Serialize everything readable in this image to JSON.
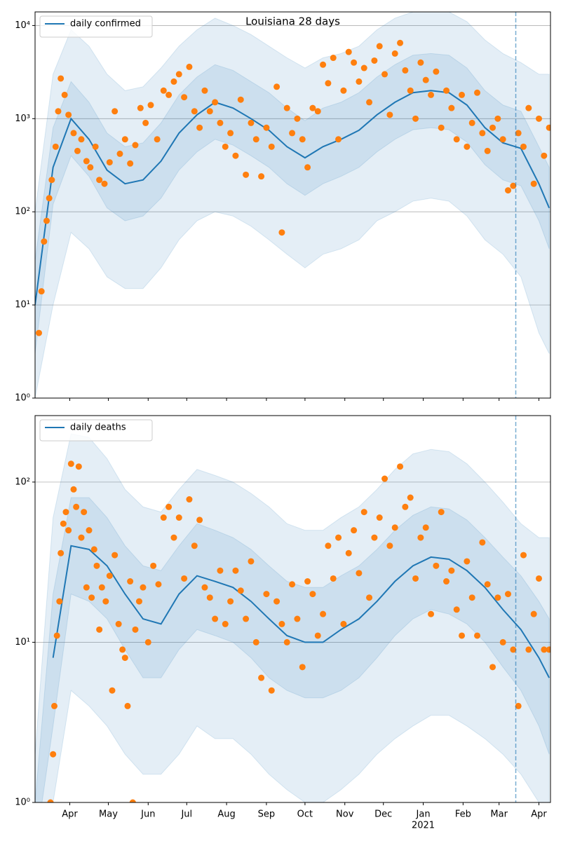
{
  "chart_data": [
    {
      "type": "line",
      "title": "Louisiana 28 days",
      "legend_loc": "upper left",
      "log_y": true,
      "grid": true,
      "show_xtick_labels": false,
      "xlim": [
        0,
        401
      ],
      "ylim": [
        1,
        14000
      ],
      "yticks": [
        {
          "value": 1,
          "label": "10⁰"
        },
        {
          "value": 10,
          "label": "10¹"
        },
        {
          "value": 100,
          "label": "10²"
        },
        {
          "value": 1000,
          "label": "10³"
        },
        {
          "value": 10000,
          "label": "10⁴"
        }
      ],
      "xticks": [
        {
          "value": 27,
          "label": "Apr"
        },
        {
          "value": 57,
          "label": "May"
        },
        {
          "value": 88,
          "label": "Jun"
        },
        {
          "value": 118,
          "label": "Jul"
        },
        {
          "value": 149,
          "label": "Aug"
        },
        {
          "value": 180,
          "label": "Sep"
        },
        {
          "value": 210,
          "label": "Oct"
        },
        {
          "value": 241,
          "label": "Nov"
        },
        {
          "value": 271,
          "label": "Dec"
        },
        {
          "value": 302,
          "label": "Jan"
        },
        {
          "value": 333,
          "label": "Feb"
        },
        {
          "value": 361,
          "label": "Mar"
        },
        {
          "value": 392,
          "label": "Apr"
        }
      ],
      "vline": 374,
      "vline_color": "#1f77b4",
      "series": [
        {
          "name": "daily confirmed",
          "kind": "line",
          "color": "#1f77b4",
          "x": [
            0,
            14,
            28,
            42,
            56,
            70,
            84,
            98,
            112,
            126,
            140,
            154,
            168,
            182,
            196,
            210,
            224,
            238,
            252,
            266,
            280,
            294,
            308,
            322,
            336,
            350,
            364,
            378,
            392,
            400
          ],
          "values": [
            10,
            300,
            1000,
            600,
            280,
            200,
            220,
            350,
            700,
            1100,
            1500,
            1300,
            1000,
            750,
            500,
            380,
            500,
            600,
            750,
            1100,
            1500,
            1900,
            2000,
            1900,
            1400,
            800,
            550,
            480,
            200,
            110
          ],
          "bands": [
            {
              "lower": [
                1,
                10,
                60,
                40,
                20,
                15,
                15,
                25,
                50,
                80,
                100,
                90,
                70,
                50,
                35,
                25,
                35,
                40,
                50,
                80,
                100,
                130,
                140,
                130,
                90,
                50,
                35,
                20,
                5,
                3
              ],
              "upper": [
                100,
                3000,
                9000,
                6000,
                3000,
                2000,
                2200,
                3500,
                6000,
                9000,
                12000,
                10000,
                8000,
                6000,
                4500,
                3500,
                4500,
                5000,
                6000,
                9000,
                12000,
                14000,
                14000,
                14000,
                11000,
                7000,
                5000,
                4000,
                3000,
                3000
              ]
            },
            {
              "lower": [
                3,
                120,
                400,
                240,
                110,
                80,
                90,
                140,
                280,
                440,
                600,
                520,
                400,
                300,
                200,
                150,
                200,
                240,
                300,
                440,
                600,
                760,
                800,
                760,
                560,
                320,
                220,
                190,
                80,
                40
              ],
              "upper": [
                30,
                800,
                2500,
                1500,
                700,
                500,
                550,
                900,
                1800,
                2800,
                3800,
                3300,
                2500,
                1900,
                1300,
                950,
                1300,
                1500,
                1900,
                2800,
                3800,
                4800,
                5000,
                4800,
                3500,
                2000,
                1400,
                1200,
                500,
                300
              ]
            }
          ]
        },
        {
          "kind": "scatter",
          "color": "#ff7f0e",
          "x": [
            3,
            5,
            7,
            9,
            11,
            13,
            16,
            18,
            20,
            23,
            26,
            30,
            33,
            36,
            40,
            43,
            47,
            50,
            54,
            58,
            62,
            66,
            70,
            74,
            78,
            82,
            86,
            90,
            95,
            100,
            104,
            108,
            112,
            116,
            120,
            124,
            128,
            132,
            136,
            140,
            144,
            148,
            152,
            156,
            160,
            164,
            168,
            172,
            176,
            180,
            184,
            188,
            192,
            196,
            200,
            204,
            208,
            212,
            216,
            220,
            224,
            228,
            232,
            236,
            240,
            244,
            248,
            252,
            256,
            260,
            264,
            268,
            272,
            276,
            280,
            284,
            288,
            292,
            296,
            300,
            304,
            308,
            312,
            316,
            320,
            324,
            328,
            332,
            336,
            340,
            344,
            348,
            352,
            356,
            360,
            364,
            368,
            372,
            376,
            380,
            384,
            388,
            392,
            396,
            400
          ],
          "values": [
            5,
            14,
            48,
            80,
            140,
            220,
            500,
            1200,
            2700,
            1800,
            1100,
            700,
            450,
            600,
            350,
            300,
            500,
            220,
            200,
            340,
            1200,
            420,
            600,
            330,
            520,
            1300,
            900,
            1400,
            600,
            2000,
            1800,
            2500,
            3000,
            1700,
            3600,
            1200,
            800,
            2000,
            1200,
            1500,
            900,
            500,
            700,
            400,
            1600,
            250,
            900,
            600,
            240,
            800,
            500,
            2200,
            60,
            1300,
            700,
            1000,
            600,
            300,
            1300,
            1200,
            3800,
            2400,
            4500,
            600,
            2000,
            5200,
            4000,
            2500,
            3500,
            1500,
            4200,
            6000,
            3000,
            1100,
            5000,
            6500,
            3300,
            2000,
            1000,
            4000,
            2600,
            1800,
            3200,
            800,
            2000,
            1300,
            600,
            1800,
            500,
            900,
            1900,
            700,
            450,
            800,
            1000,
            600,
            170,
            190,
            700,
            500,
            1300,
            200,
            1000,
            400,
            800
          ]
        }
      ]
    },
    {
      "type": "line",
      "legend_loc": "upper left",
      "log_y": true,
      "grid": true,
      "show_xtick_labels": true,
      "xlim": [
        0,
        401
      ],
      "ylim": [
        1,
        260
      ],
      "yticks": [
        {
          "value": 1,
          "label": "10⁰"
        },
        {
          "value": 10,
          "label": "10¹"
        },
        {
          "value": 100,
          "label": "10²"
        }
      ],
      "xticks": [
        {
          "value": 27,
          "label": "Apr"
        },
        {
          "value": 57,
          "label": "May"
        },
        {
          "value": 88,
          "label": "Jun"
        },
        {
          "value": 118,
          "label": "Jul"
        },
        {
          "value": 149,
          "label": "Aug"
        },
        {
          "value": 180,
          "label": "Sep"
        },
        {
          "value": 210,
          "label": "Oct"
        },
        {
          "value": 241,
          "label": "Nov"
        },
        {
          "value": 271,
          "label": "Dec"
        },
        {
          "value": 302,
          "label": "Jan"
        },
        {
          "value": 333,
          "label": "Feb"
        },
        {
          "value": 361,
          "label": "Mar"
        },
        {
          "value": 392,
          "label": "Apr"
        }
      ],
      "x_sublabel": {
        "value": 302,
        "label": "2021"
      },
      "vline": 374,
      "vline_color": "#1f77b4",
      "series": [
        {
          "name": "daily deaths",
          "kind": "line",
          "color": "#1f77b4",
          "x": [
            0,
            14,
            28,
            42,
            56,
            70,
            84,
            98,
            112,
            126,
            140,
            154,
            168,
            182,
            196,
            210,
            224,
            238,
            252,
            266,
            280,
            294,
            308,
            322,
            336,
            350,
            364,
            378,
            392,
            400
          ],
          "values": [
            null,
            8,
            40,
            38,
            30,
            20,
            14,
            13,
            20,
            26,
            24,
            22,
            18,
            14,
            11,
            10,
            10,
            12,
            14,
            18,
            24,
            30,
            34,
            33,
            28,
            22,
            16,
            12,
            8,
            6
          ],
          "bands": [
            {
              "lower": [
                0.5,
                1,
                5,
                4,
                3,
                2,
                1.5,
                1.5,
                2,
                3,
                2.5,
                2.5,
                2,
                1.5,
                1.2,
                1,
                1,
                1.2,
                1.5,
                2,
                2.5,
                3,
                3.5,
                3.5,
                3,
                2.5,
                2,
                1.5,
                1,
                1
              ],
              "upper": [
                2,
                60,
                200,
                190,
                140,
                90,
                70,
                65,
                90,
                120,
                110,
                100,
                85,
                70,
                55,
                50,
                50,
                60,
                70,
                90,
                120,
                150,
                160,
                155,
                130,
                100,
                75,
                55,
                45,
                45
              ]
            },
            {
              "lower": [
                0.5,
                3,
                20,
                18,
                14,
                9,
                6,
                6,
                9,
                12,
                11,
                10,
                8,
                6,
                5,
                4.5,
                4.5,
                5,
                6,
                8,
                11,
                14,
                16,
                15,
                13,
                10,
                7,
                5,
                3,
                2
              ],
              "upper": [
                1,
                20,
                80,
                80,
                60,
                40,
                30,
                28,
                40,
                55,
                50,
                45,
                38,
                30,
                24,
                22,
                22,
                26,
                30,
                38,
                50,
                62,
                70,
                68,
                58,
                45,
                34,
                26,
                18,
                14
              ]
            }
          ]
        },
        {
          "kind": "scatter",
          "color": "#ff7f0e",
          "x": [
            12,
            14,
            15,
            17,
            19,
            20,
            22,
            24,
            26,
            28,
            30,
            32,
            34,
            36,
            38,
            40,
            42,
            44,
            46,
            48,
            50,
            52,
            55,
            58,
            60,
            62,
            65,
            68,
            70,
            72,
            74,
            76,
            78,
            81,
            84,
            88,
            92,
            96,
            100,
            104,
            108,
            112,
            116,
            120,
            124,
            128,
            132,
            136,
            140,
            144,
            148,
            152,
            156,
            160,
            164,
            168,
            172,
            176,
            180,
            184,
            188,
            192,
            196,
            200,
            204,
            208,
            212,
            216,
            220,
            224,
            228,
            232,
            236,
            240,
            244,
            248,
            252,
            256,
            260,
            264,
            268,
            272,
            276,
            280,
            284,
            288,
            292,
            296,
            300,
            304,
            308,
            312,
            316,
            320,
            324,
            328,
            332,
            336,
            340,
            344,
            348,
            352,
            356,
            360,
            364,
            368,
            372,
            376,
            380,
            384,
            388,
            392,
            396,
            400
          ],
          "values": [
            1,
            2,
            4,
            11,
            18,
            36,
            55,
            65,
            50,
            130,
            90,
            70,
            125,
            45,
            65,
            22,
            50,
            19,
            38,
            30,
            12,
            22,
            18,
            26,
            5,
            35,
            13,
            9,
            8,
            4,
            24,
            1,
            12,
            18,
            22,
            10,
            30,
            23,
            60,
            70,
            45,
            60,
            25,
            78,
            40,
            58,
            22,
            19,
            14,
            28,
            13,
            18,
            28,
            21,
            14,
            32,
            10,
            6,
            20,
            5,
            18,
            13,
            10,
            23,
            14,
            7,
            24,
            20,
            11,
            15,
            40,
            25,
            45,
            13,
            36,
            50,
            27,
            65,
            19,
            45,
            60,
            105,
            40,
            52,
            125,
            70,
            80,
            25,
            45,
            52,
            15,
            30,
            65,
            24,
            28,
            16,
            11,
            32,
            19,
            11,
            42,
            23,
            7,
            19,
            10,
            20,
            9,
            4,
            35,
            9,
            15,
            25,
            9,
            9
          ]
        }
      ]
    }
  ]
}
